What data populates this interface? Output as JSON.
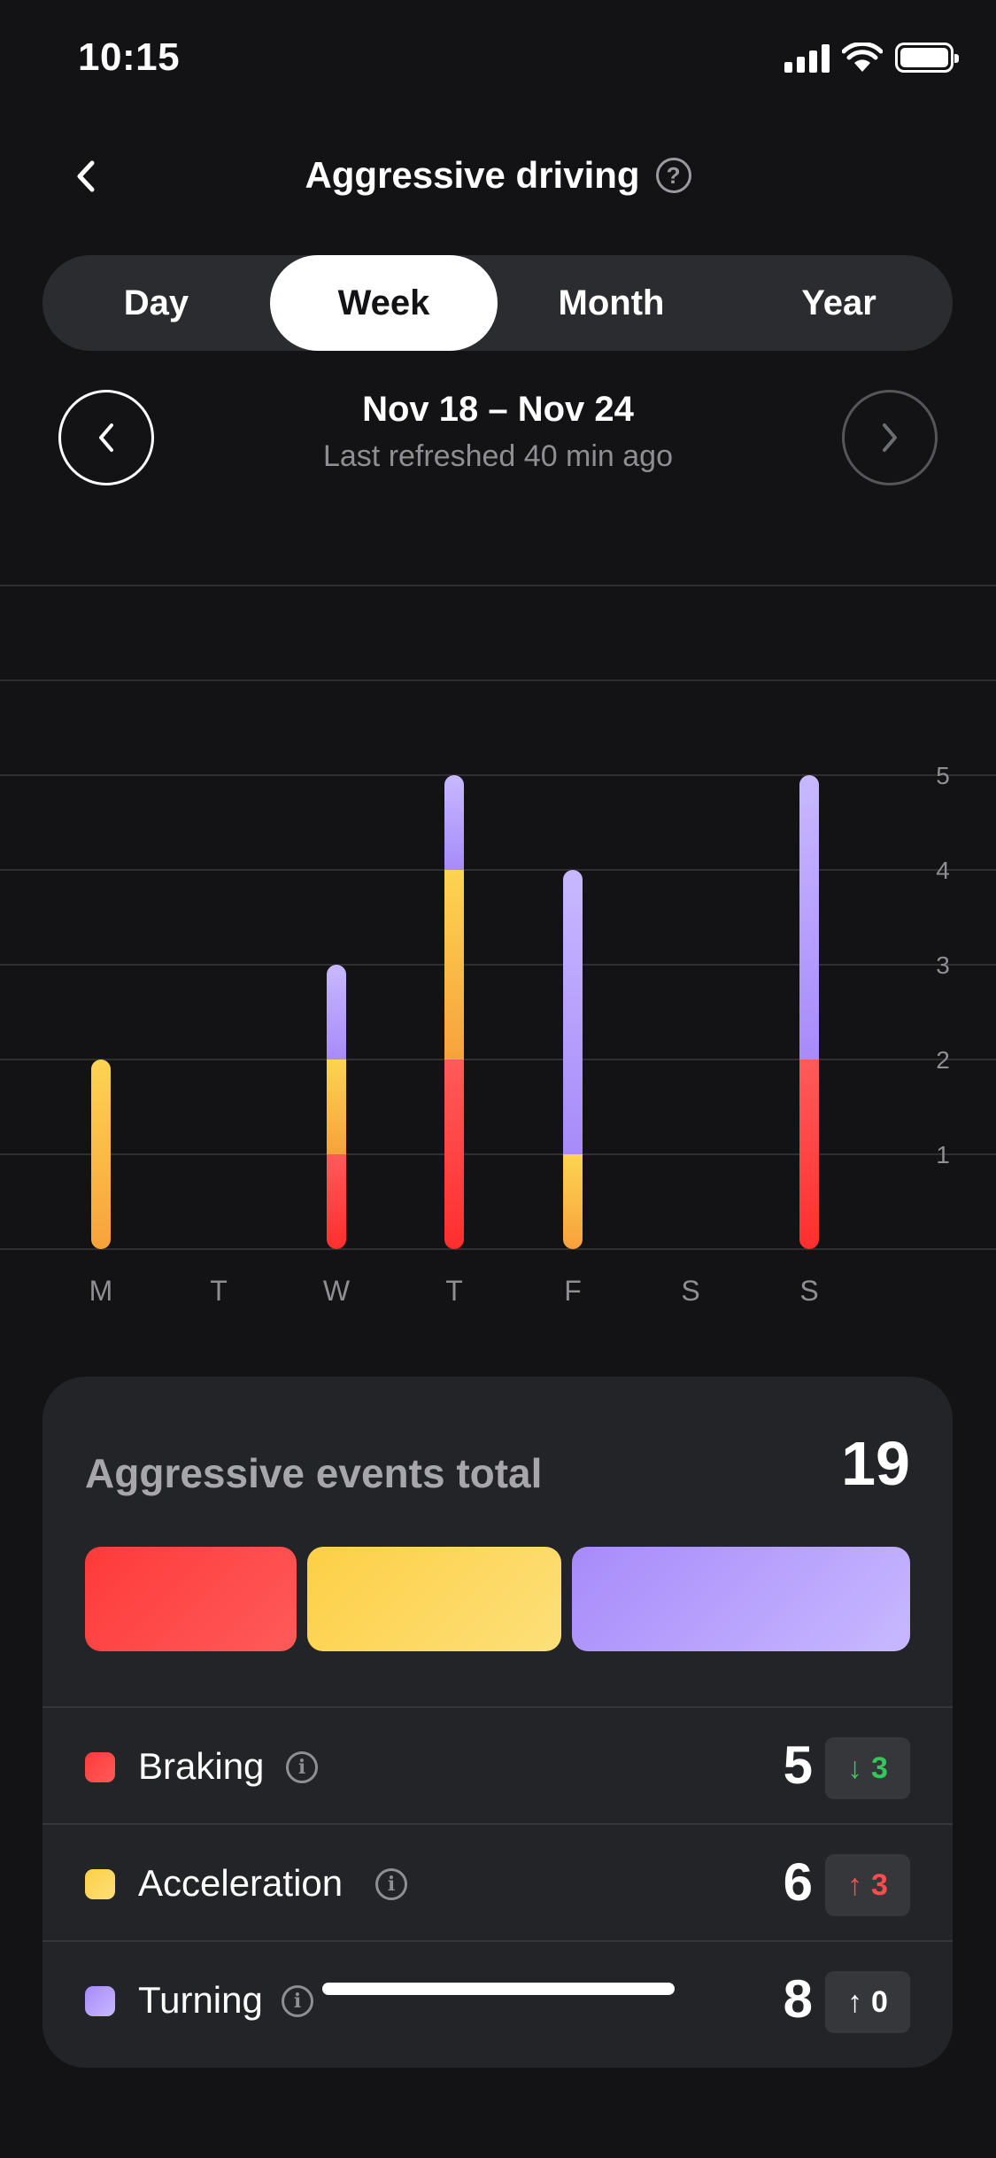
{
  "status_bar": {
    "time": "10:15",
    "icons": [
      "signal-icon",
      "wifi-icon",
      "battery-icon"
    ]
  },
  "header": {
    "title": "Aggressive driving",
    "back_icon": "chevron-left-icon",
    "help_icon": "question-circle-icon",
    "help_glyph": "?"
  },
  "period_tabs": [
    {
      "label": "Day",
      "active": false
    },
    {
      "label": "Week",
      "active": true
    },
    {
      "label": "Month",
      "active": false
    },
    {
      "label": "Year",
      "active": false
    }
  ],
  "date_nav": {
    "range": "Nov 18 – Nov 24",
    "refreshed": "Last refreshed 40 min ago",
    "prev_icon": "chevron-left-icon",
    "next_icon": "chevron-right-icon"
  },
  "colors": {
    "braking": "#ff3d3d",
    "acceleration": "#fdd451",
    "acceleration_low": "#f7a23c",
    "turning": "#a78bfa",
    "turning_light": "#c8b8ff",
    "up_red": "#ff4d4d",
    "down_green": "#34c759"
  },
  "chart_data": {
    "type": "bar",
    "stacked": true,
    "categories": [
      "M",
      "T",
      "W",
      "T",
      "F",
      "S",
      "S"
    ],
    "series": [
      {
        "name": "Braking",
        "values": [
          0,
          0,
          1,
          2,
          0,
          0,
          2
        ]
      },
      {
        "name": "Acceleration",
        "values": [
          2,
          0,
          1,
          2,
          1,
          0,
          0
        ]
      },
      {
        "name": "Turning",
        "values": [
          0,
          0,
          1,
          1,
          3,
          0,
          3
        ]
      }
    ],
    "yticks": [
      1,
      2,
      3,
      4,
      5
    ],
    "ylim": [
      0,
      7
    ],
    "grid": true,
    "y_axis_position": "right"
  },
  "summary": {
    "title": "Aggressive events total",
    "total": "19",
    "rows": [
      {
        "key": "braking",
        "label": "Braking",
        "value": "5",
        "change": "3",
        "direction": "down",
        "arrow": "↓"
      },
      {
        "key": "acceleration",
        "label": "Acceleration",
        "value": "6",
        "change": "3",
        "direction": "up",
        "arrow": "↑"
      },
      {
        "key": "turning",
        "label": "Turning",
        "value": "8",
        "change": "0",
        "direction": "up-neutral",
        "arrow": "↑"
      }
    ],
    "info_glyph": "i"
  }
}
